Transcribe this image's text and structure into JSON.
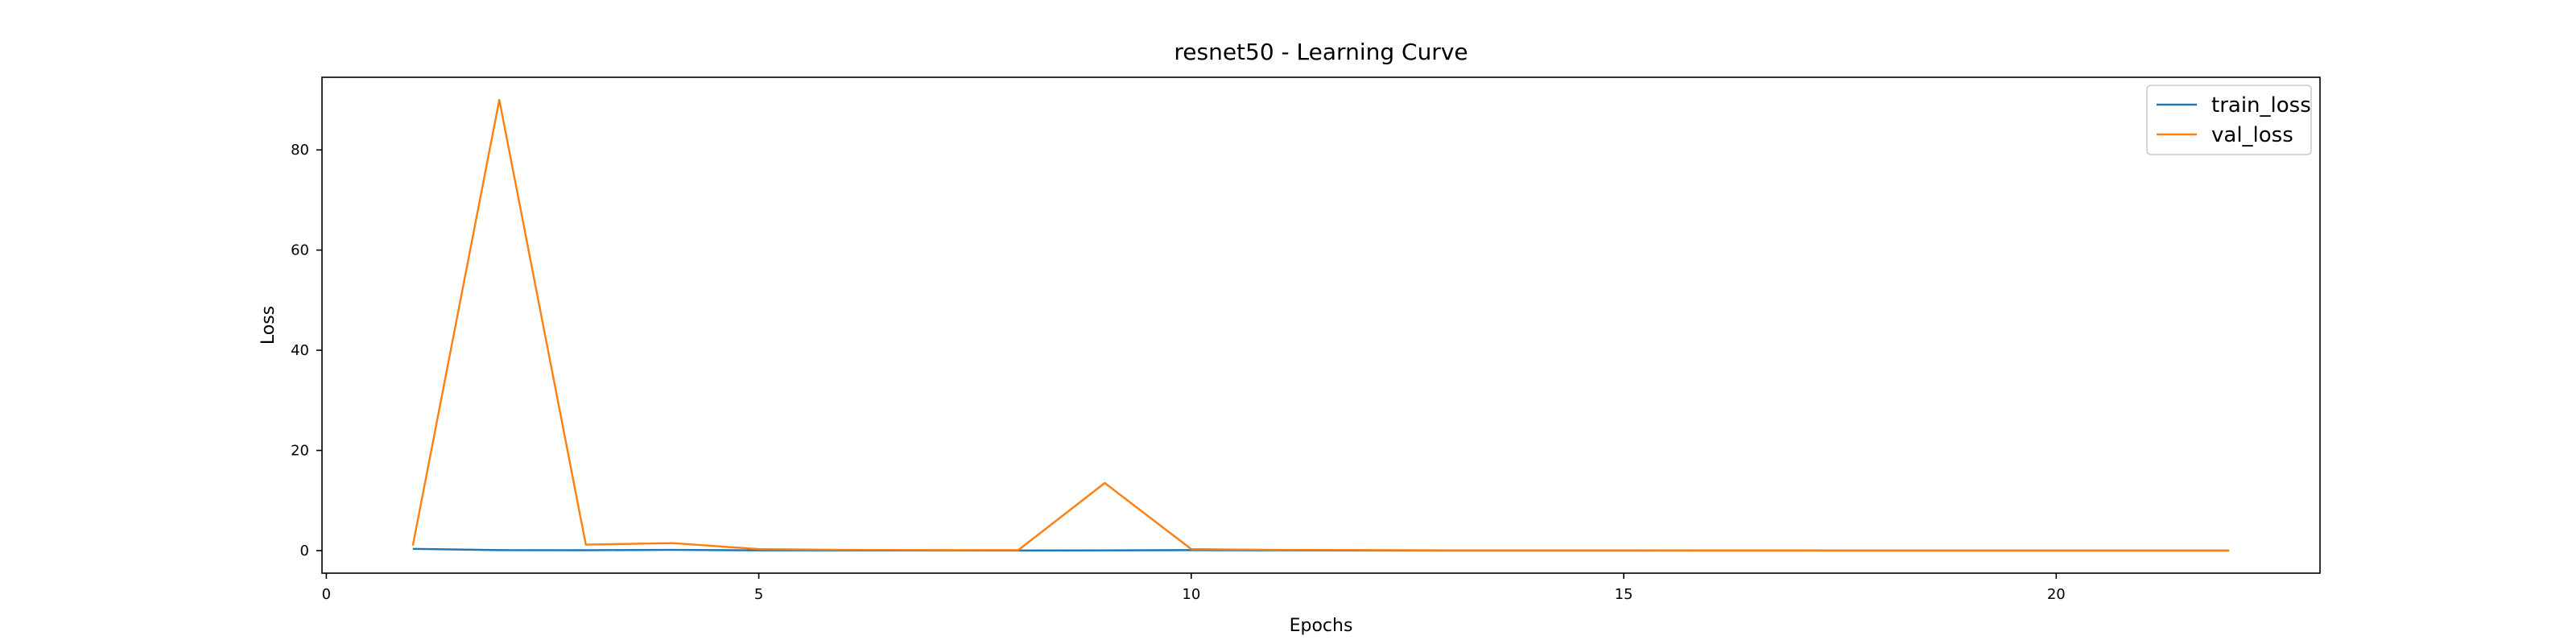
{
  "chart_data": {
    "type": "line",
    "title": "resnet50 - Learning Curve",
    "xlabel": "Epochs",
    "ylabel": "Loss",
    "xlim": [
      -0.05,
      23.05
    ],
    "ylim": [
      -4.5,
      94.5
    ],
    "xticks": [
      0,
      5,
      10,
      15,
      20
    ],
    "yticks": [
      0,
      20,
      40,
      60,
      80
    ],
    "grid": false,
    "legend_position": "top-right",
    "series": [
      {
        "name": "train_loss",
        "color": "#1f77b4",
        "x": [
          1,
          2,
          3,
          4,
          5,
          6,
          7,
          8,
          9,
          10,
          11,
          12,
          13,
          14,
          15,
          16,
          17,
          18,
          19,
          20,
          21,
          22
        ],
        "y": [
          0.35,
          0.1,
          0.08,
          0.15,
          0.05,
          0.04,
          0.03,
          0.02,
          0.05,
          0.1,
          0.05,
          0.03,
          0.02,
          0.02,
          0.02,
          0.02,
          0.01,
          0.01,
          0.01,
          0.01,
          0.01,
          0.01
        ]
      },
      {
        "name": "val_loss",
        "color": "#ff7f0e",
        "x": [
          1,
          2,
          3,
          4,
          5,
          6,
          7,
          8,
          9,
          10,
          11,
          12,
          13,
          14,
          15,
          16,
          17,
          18,
          19,
          20,
          21,
          22
        ],
        "y": [
          1.0,
          90.0,
          1.2,
          1.5,
          0.3,
          0.15,
          0.1,
          0.1,
          13.5,
          0.3,
          0.15,
          0.1,
          0.05,
          0.05,
          0.05,
          0.04,
          0.04,
          0.03,
          0.03,
          0.03,
          0.03,
          0.03
        ]
      }
    ]
  }
}
